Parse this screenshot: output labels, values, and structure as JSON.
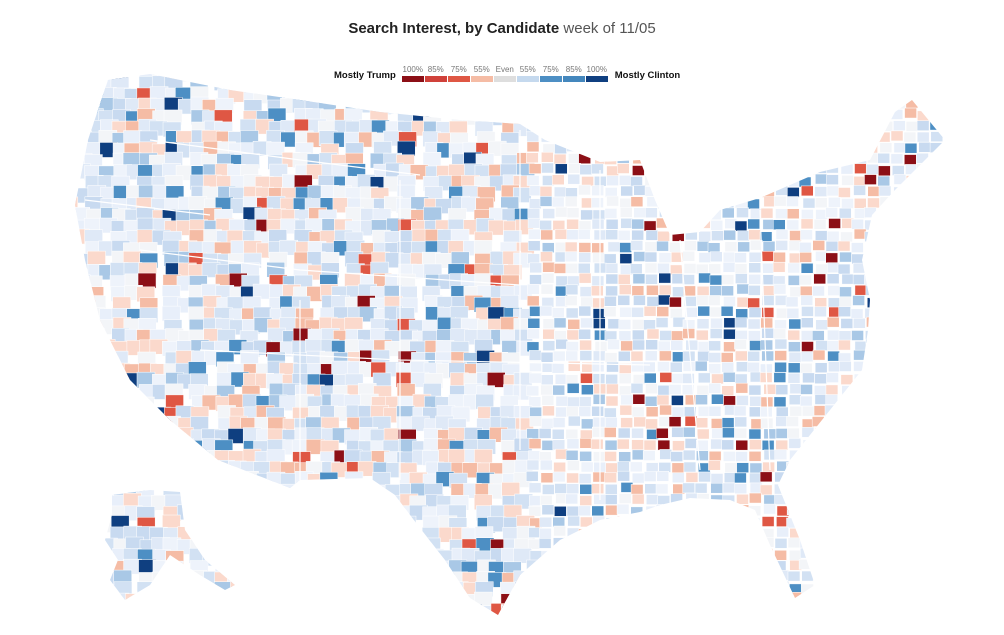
{
  "title": {
    "main": "Search Interest, by Candidate",
    "sub": "week of 11/05"
  },
  "legend": {
    "left_label": "Mostly Trump",
    "right_label": "Mostly Clinton",
    "items": [
      {
        "label": "100%",
        "color": "#8c0f16"
      },
      {
        "label": "85%",
        "color": "#d0413a"
      },
      {
        "label": "75%",
        "color": "#df5744"
      },
      {
        "label": "55%",
        "color": "#f5bca5"
      },
      {
        "label": "Even",
        "color": "#dedede"
      },
      {
        "label": "55%",
        "color": "#c5d9ee"
      },
      {
        "label": "75%",
        "color": "#4d8fc4"
      },
      {
        "label": "85%",
        "color": "#4487bd"
      },
      {
        "label": "100%",
        "color": "#0f3f80"
      }
    ]
  }
}
